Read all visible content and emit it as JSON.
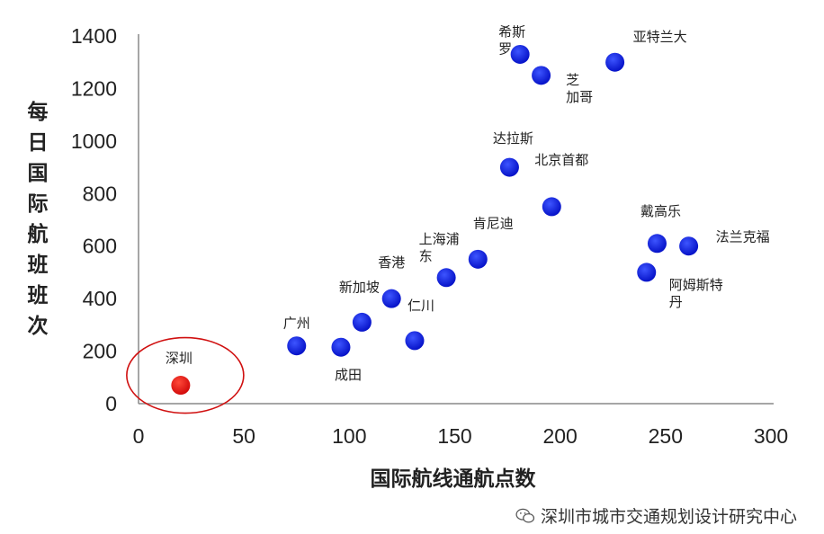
{
  "chart_data": {
    "type": "scatter",
    "xlabel": "国际航线通航点数",
    "ylabel": "每日国际航班班次",
    "xlim": [
      0,
      300
    ],
    "ylim": [
      0,
      1400
    ],
    "xticks": [
      0,
      50,
      100,
      150,
      200,
      250,
      300
    ],
    "yticks": [
      0,
      200,
      400,
      600,
      800,
      1000,
      1200,
      1400
    ],
    "grid": false,
    "points": [
      {
        "name": "深圳",
        "x": 20,
        "y": 70,
        "color": "#ee1111",
        "highlight": true
      },
      {
        "name": "广州",
        "x": 75,
        "y": 220,
        "color": "#0a14e6"
      },
      {
        "name": "成田",
        "x": 96,
        "y": 215,
        "color": "#0a14e6"
      },
      {
        "name": "新加坡",
        "x": 106,
        "y": 310,
        "color": "#0a14e6"
      },
      {
        "name": "香港",
        "x": 120,
        "y": 400,
        "color": "#0a14e6"
      },
      {
        "name": "仁川",
        "x": 131,
        "y": 240,
        "color": "#0a14e6"
      },
      {
        "name": "上海浦东",
        "x": 146,
        "y": 480,
        "color": "#0a14e6"
      },
      {
        "name": "肯尼迪",
        "x": 161,
        "y": 550,
        "color": "#0a14e6"
      },
      {
        "name": "达拉斯",
        "x": 176,
        "y": 900,
        "color": "#0a14e6"
      },
      {
        "name": "北京首都",
        "x": 196,
        "y": 750,
        "color": "#0a14e6"
      },
      {
        "name": "希斯罗",
        "x": 181,
        "y": 1330,
        "color": "#0a14e6"
      },
      {
        "name": "芝加哥",
        "x": 191,
        "y": 1250,
        "color": "#0a14e6"
      },
      {
        "name": "亚特兰大",
        "x": 226,
        "y": 1300,
        "color": "#0a14e6"
      },
      {
        "name": "戴高乐",
        "x": 246,
        "y": 610,
        "color": "#0a14e6"
      },
      {
        "name": "法兰克福",
        "x": 261,
        "y": 600,
        "color": "#0a14e6"
      },
      {
        "name": "阿姆斯特丹",
        "x": 241,
        "y": 500,
        "color": "#0a14e6"
      }
    ]
  },
  "watermark": "深圳市城市交通规划设计研究中心",
  "watermark_icon": "wechat-icon"
}
